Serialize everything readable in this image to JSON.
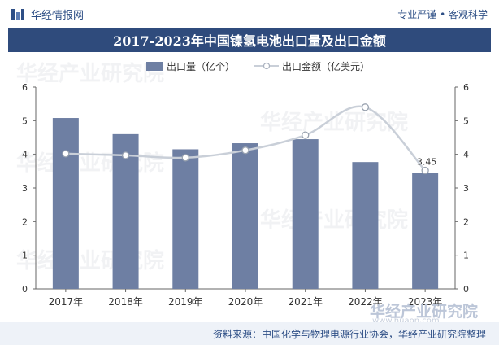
{
  "header": {
    "brand_name": "华经情报网",
    "slogan": "专业严谨 • 客观科学"
  },
  "chart_data": {
    "type": "bar",
    "title": "2017-2023年中国镍氢电池出口量及出口金额",
    "categories": [
      "2017年",
      "2018年",
      "2019年",
      "2020年",
      "2021年",
      "2022年",
      "2023年"
    ],
    "series": [
      {
        "name": "出口量（亿个）",
        "type": "bar",
        "axis": "left",
        "color": "#6e7fa3",
        "values": [
          5.08,
          4.6,
          4.15,
          4.33,
          4.45,
          3.77,
          3.45
        ]
      },
      {
        "name": "出口金额（亿美元）",
        "type": "line",
        "axis": "right",
        "color": "#c9cfd8",
        "values": [
          4.02,
          3.97,
          3.9,
          4.12,
          4.57,
          5.4,
          3.52
        ]
      }
    ],
    "data_labels": [
      {
        "series": 1,
        "index": 6,
        "text": "3.45"
      }
    ],
    "left_axis": {
      "ylim": [
        0,
        6
      ],
      "ticks": [
        "0",
        "1",
        "2",
        "3",
        "4",
        "5",
        "6"
      ]
    },
    "right_axis": {
      "ylim": [
        0,
        6
      ],
      "ticks": [
        "0",
        "1",
        "2",
        "3",
        "4",
        "5",
        "6"
      ]
    },
    "legend_position": "top-center",
    "grid": false
  },
  "footer": {
    "source": "资料来源：中国化学与物理电源行业协会，华经产业研究院整理"
  },
  "watermark": {
    "text": "华经产业研究院",
    "url": "www.huaon.com"
  }
}
